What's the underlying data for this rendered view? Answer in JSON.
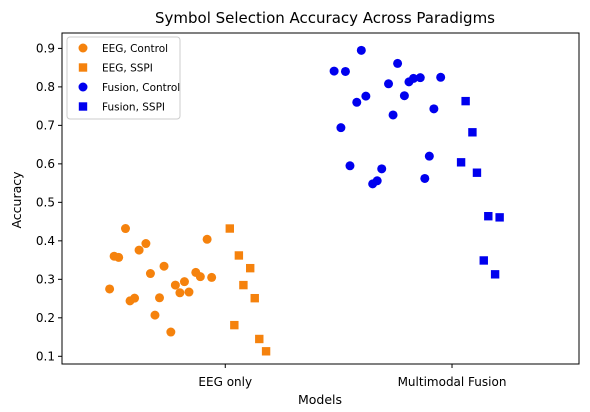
{
  "chart_data": {
    "type": "scatter",
    "title": "Symbol Selection Accuracy Across Paradigms",
    "xlabel": "Models",
    "ylabel": "Accuracy",
    "categories": [
      "EEG only",
      "Multimodal Fusion"
    ],
    "ylim": [
      0.08,
      0.94
    ],
    "yticks": [
      "0.1",
      "0.2",
      "0.3",
      "0.4",
      "0.5",
      "0.6",
      "0.7",
      "0.8",
      "0.9"
    ],
    "legend_position": "top-left",
    "grid": false,
    "series": [
      {
        "name": "EEG, Control",
        "marker": "circle",
        "color": "#f5820d",
        "category": 0,
        "x_jitter": [
          -0.51,
          -0.49,
          -0.47,
          -0.44,
          -0.42,
          -0.4,
          -0.38,
          -0.35,
          -0.33,
          -0.31,
          -0.29,
          -0.27,
          -0.24,
          -0.22,
          -0.2,
          -0.18,
          -0.16,
          -0.13,
          -0.11,
          -0.08,
          -0.06,
          -0.04,
          -0.02
        ],
        "values": [
          0.275,
          0.36,
          0.357,
          0.432,
          0.244,
          0.251,
          0.376,
          0.393,
          0.315,
          0.207,
          0.252,
          0.334,
          0.163,
          0.285,
          0.265,
          0.294,
          0.267,
          0.318,
          0.307,
          0.404,
          0.305,
          null,
          null
        ]
      },
      {
        "name": "EEG, SSPI",
        "marker": "square",
        "color": "#f5820d",
        "category": 0,
        "x_jitter": [
          0.02,
          0.04,
          0.06,
          0.08,
          0.11,
          0.13,
          0.15,
          0.18
        ],
        "values": [
          0.432,
          0.181,
          0.362,
          0.285,
          0.329,
          0.251,
          0.145,
          0.113
        ]
      },
      {
        "name": "Fusion, Control",
        "marker": "circle",
        "color": "#0000ee",
        "category": 1,
        "x_jitter": [
          -0.52,
          -0.49,
          -0.47,
          -0.45,
          -0.42,
          -0.4,
          -0.38,
          -0.35,
          -0.33,
          -0.31,
          -0.28,
          -0.26,
          -0.24,
          -0.21,
          -0.19,
          -0.17,
          -0.14,
          -0.12,
          -0.1,
          -0.08,
          -0.05,
          -0.03,
          0.0
        ],
        "values": [
          0.841,
          0.694,
          0.84,
          0.595,
          0.76,
          0.895,
          0.776,
          0.548,
          0.556,
          0.587,
          0.808,
          0.727,
          0.861,
          0.777,
          0.813,
          0.822,
          0.824,
          0.562,
          0.62,
          0.743,
          0.825,
          null,
          null
        ]
      },
      {
        "name": "Fusion, SSPI",
        "marker": "square",
        "color": "#0000ee",
        "category": 1,
        "x_jitter": [
          0.04,
          0.06,
          0.09,
          0.11,
          0.14,
          0.16,
          0.19,
          0.21
        ],
        "values": [
          0.604,
          0.763,
          0.682,
          0.577,
          0.349,
          0.464,
          0.313,
          0.461
        ]
      }
    ]
  }
}
